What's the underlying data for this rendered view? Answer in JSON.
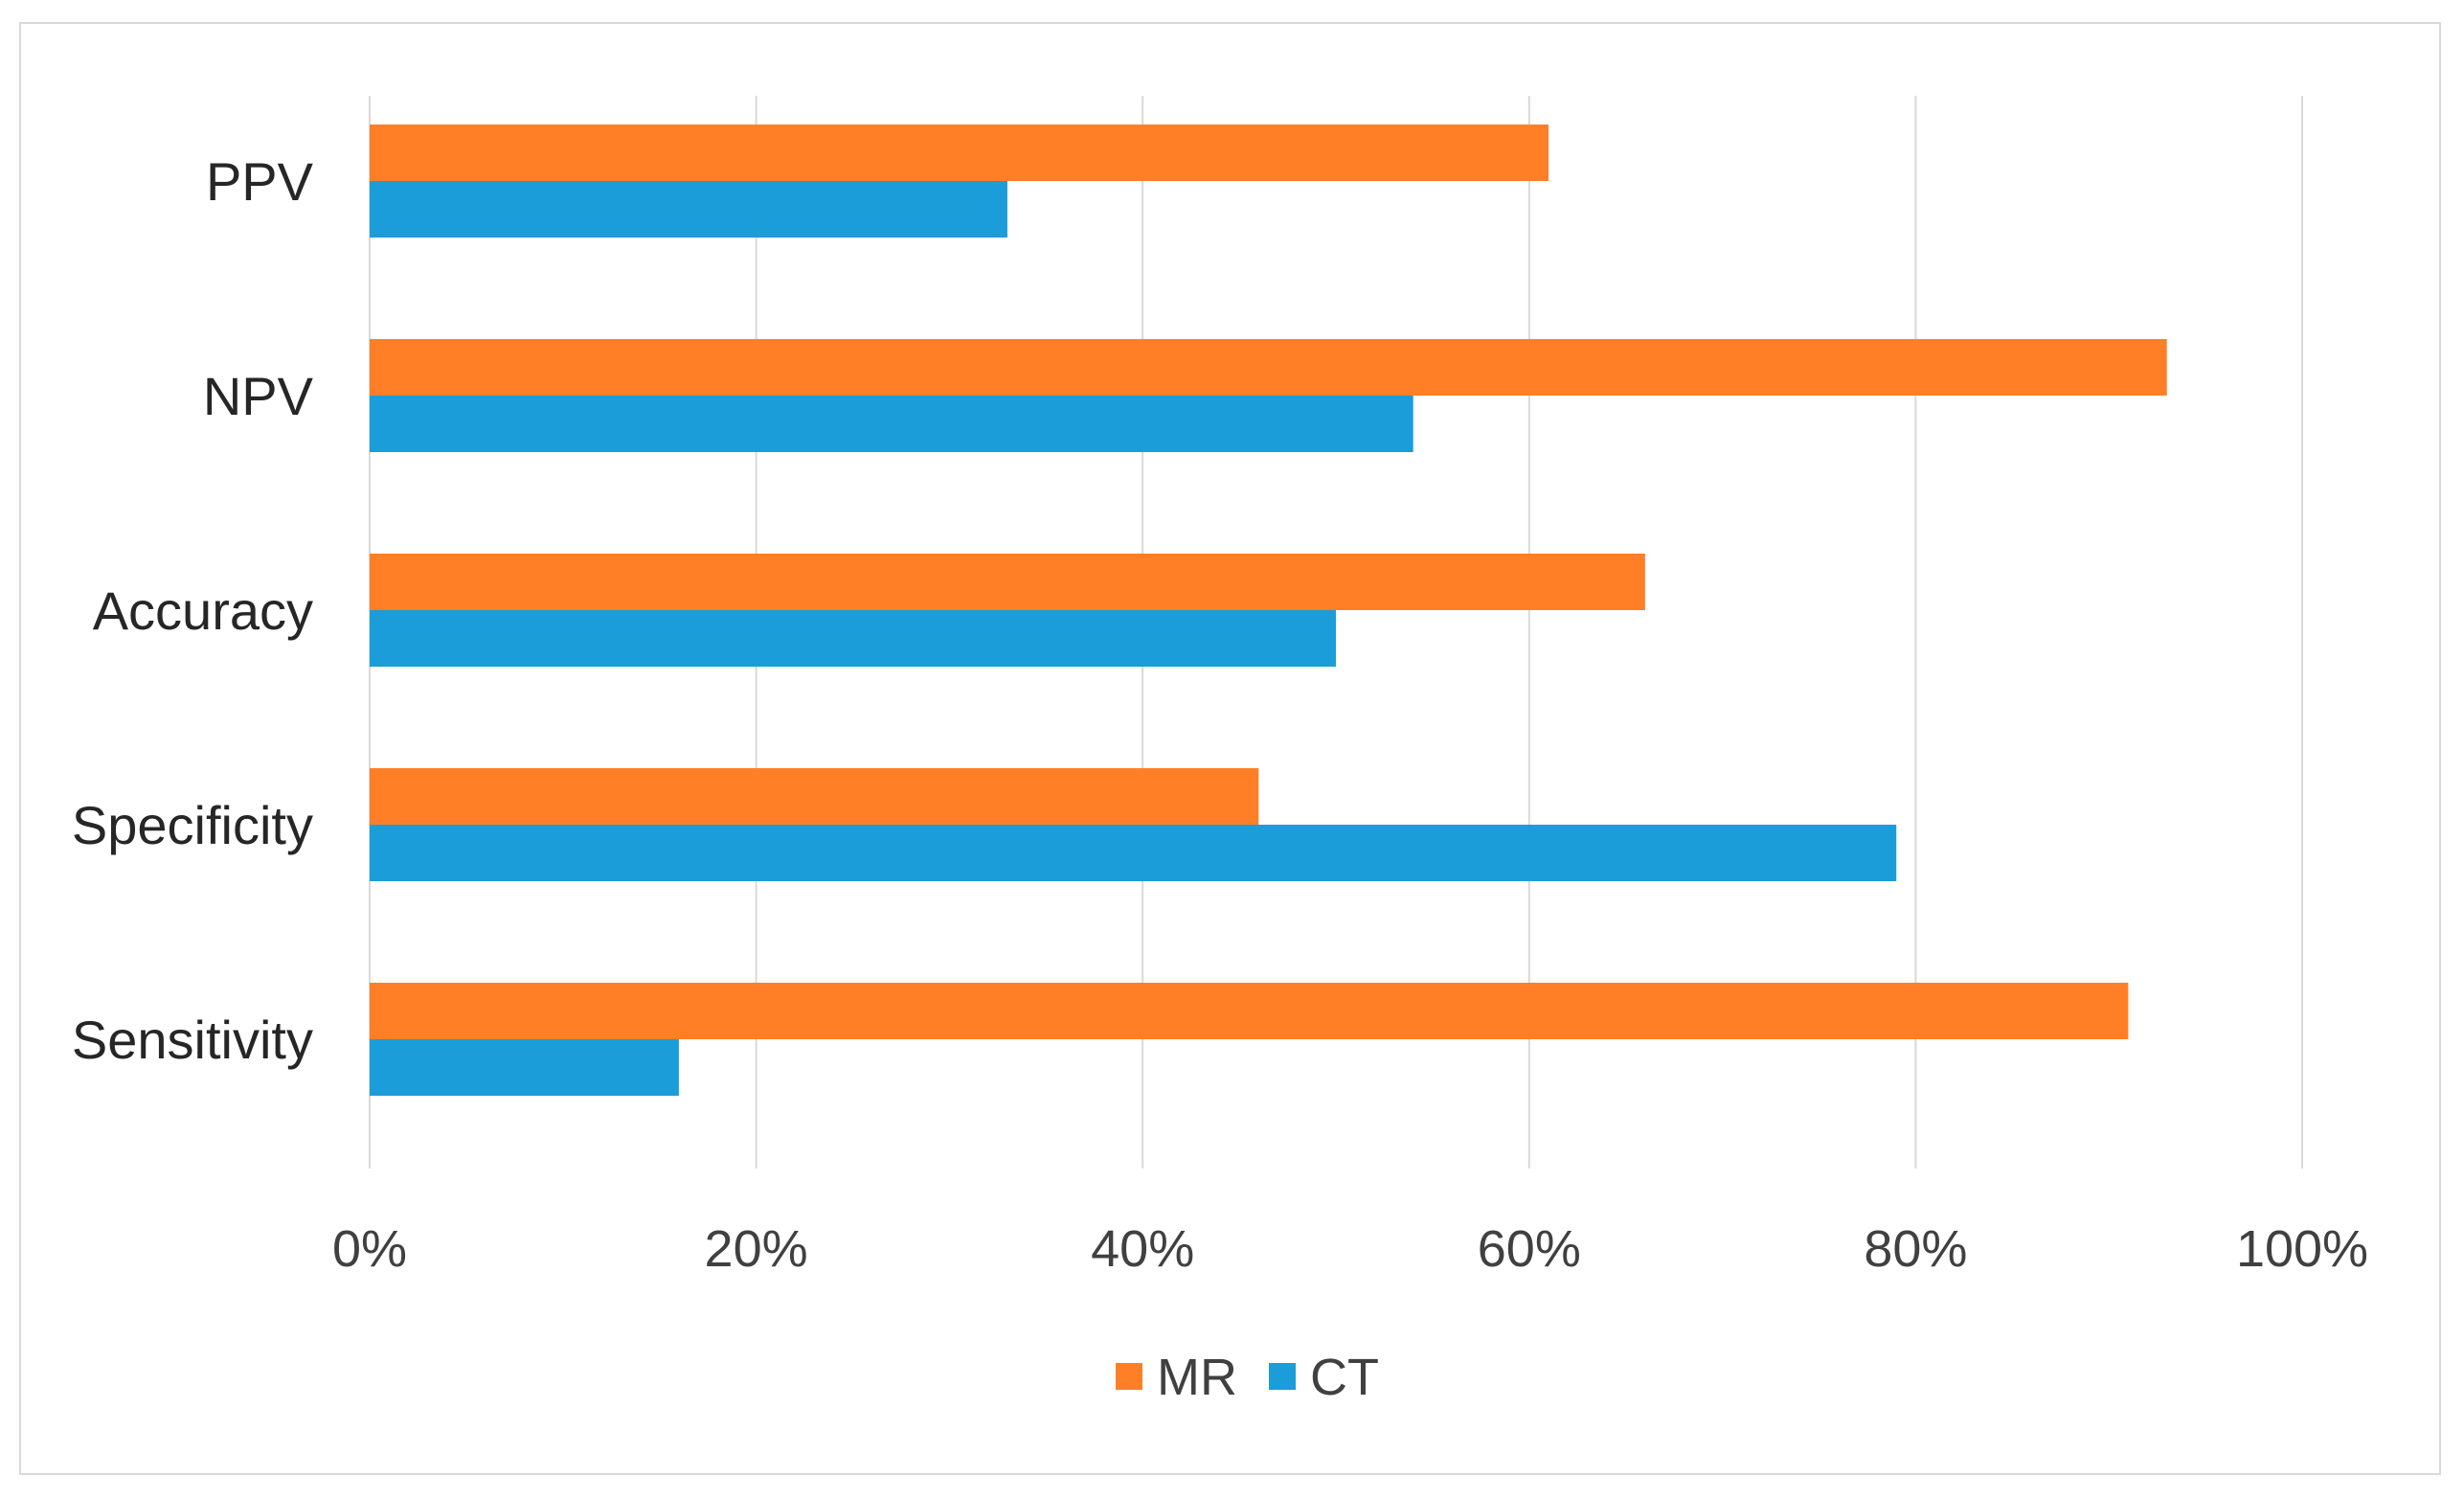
{
  "chart_data": {
    "type": "bar",
    "orientation": "horizontal",
    "categories": [
      "PPV",
      "NPV",
      "Accuracy",
      "Specificity",
      "Sensitivity"
    ],
    "series": [
      {
        "name": "MR",
        "color": "#FF7F27",
        "values": [
          61,
          93,
          66,
          46,
          91
        ]
      },
      {
        "name": "CT",
        "color": "#1B9DD9",
        "values": [
          33,
          54,
          50,
          79,
          16
        ]
      }
    ],
    "x_ticks": [
      "0%",
      "20%",
      "40%",
      "60%",
      "80%",
      "100%"
    ],
    "xlim": [
      0,
      100
    ],
    "x_unit": "percent",
    "grid": true,
    "legend": "bottom",
    "title": "",
    "xlabel": "",
    "ylabel": ""
  }
}
